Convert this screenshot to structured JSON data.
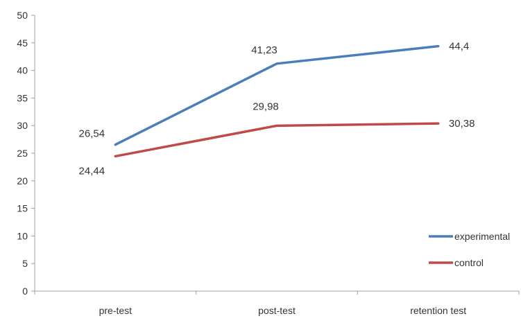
{
  "chart_data": {
    "type": "line",
    "categories": [
      "pre-test",
      "post-test",
      "retention test"
    ],
    "series": [
      {
        "name": "experimental",
        "values": [
          26.54,
          41.23,
          44.4
        ],
        "labels": [
          "26,54",
          "41,23",
          "44,4"
        ],
        "color": "#4a7ebb"
      },
      {
        "name": "control",
        "values": [
          24.44,
          29.98,
          30.38
        ],
        "labels": [
          "24,44",
          "29,98",
          "30,38"
        ],
        "color": "#be4b48"
      }
    ],
    "ylim": [
      0,
      50
    ],
    "yticks": [
      0,
      5,
      10,
      15,
      20,
      25,
      30,
      35,
      40,
      45,
      50
    ],
    "grid": false,
    "legend": "bottom-right",
    "title": "",
    "xlabel": "",
    "ylabel": ""
  }
}
